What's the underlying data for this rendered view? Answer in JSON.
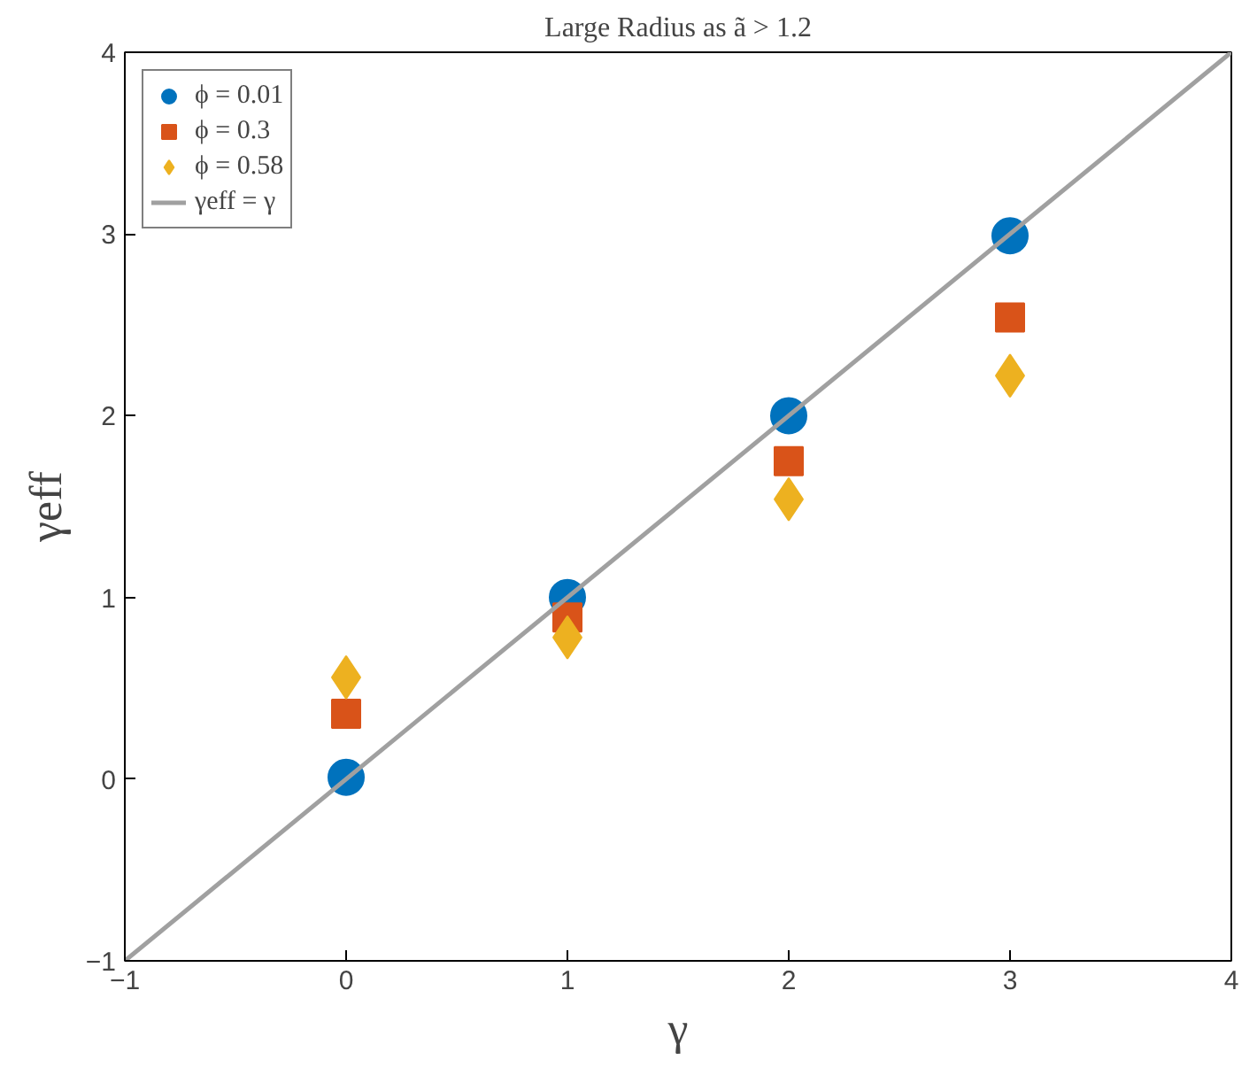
{
  "chart_data": {
    "type": "scatter",
    "title": "Large Radius as ã > 1.2",
    "xlabel": "γ",
    "ylabel": "γeff",
    "x": [
      0,
      1,
      2,
      3
    ],
    "series": [
      {
        "name": "ϕ = 0.01",
        "color": "#0072bd",
        "marker": "circle",
        "values": [
          0.01,
          1.0,
          2.0,
          2.99
        ]
      },
      {
        "name": "ϕ = 0.3",
        "color": "#d95319",
        "marker": "square",
        "values": [
          0.36,
          0.89,
          1.75,
          2.54
        ]
      },
      {
        "name": "ϕ = 0.58",
        "color": "#edb120",
        "marker": "diamond",
        "values": [
          0.56,
          0.78,
          1.54,
          2.22
        ]
      },
      {
        "name": "γeff = γ",
        "color": "#a0a0a0",
        "type": "line",
        "marker": "none",
        "x": [
          -1,
          4
        ],
        "values": [
          -1,
          4
        ]
      }
    ],
    "xlim": [
      -1,
      4
    ],
    "ylim": [
      -1,
      4
    ],
    "xticks": [
      -1,
      0,
      1,
      2,
      3,
      4
    ],
    "yticks": [
      -1,
      0,
      1,
      2,
      3,
      4
    ],
    "grid": false,
    "legend": "top left"
  }
}
